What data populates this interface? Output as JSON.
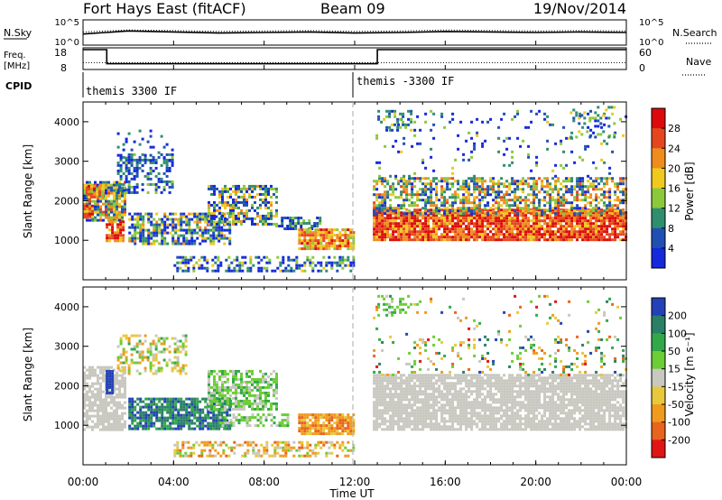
{
  "header": {
    "station": "Fort Hays East (fitACF)",
    "beam": "Beam 09",
    "date": "19/Nov/2014"
  },
  "labels": {
    "nsky": "N.Sky",
    "nsearch": "N.Search",
    "freq": "Freq.",
    "freq_unit": "[MHz]",
    "nave": "Nave",
    "cpid": "CPID",
    "xlabel": "Time UT"
  },
  "colors": {
    "power": [
      "#1428dc",
      "#2050b4",
      "#2f8e6e",
      "#8cc83c",
      "#f0c81e",
      "#f08c1e",
      "#e6461e",
      "#dc0a0a"
    ],
    "velocity": [
      "#2342b7",
      "#2a8066",
      "#32a848",
      "#6ccd36",
      "#c8c8c0",
      "#e8c83c",
      "#f09a1e",
      "#e8641e",
      "#e01414"
    ]
  },
  "chart_data": [
    {
      "type": "line",
      "title": "N.Sky / N.Search",
      "ylabel_left": "N.Sky",
      "ylabel_right": "N.Search",
      "yticks_left": [
        "10^5",
        "10^0"
      ],
      "yticks_right": [
        "10^5",
        "10^0"
      ],
      "xlim": [
        0,
        24
      ],
      "series": [
        {
          "name": "N.Sky",
          "x": [
            0,
            1,
            2,
            4,
            6,
            8,
            10,
            12,
            14,
            16,
            18,
            20,
            22,
            24
          ],
          "y": [
            2.2,
            2.5,
            2.8,
            2.6,
            2.4,
            2.5,
            2.6,
            2.4,
            2.5,
            2.7,
            2.6,
            2.5,
            2.6,
            2.5
          ]
        },
        {
          "name": "N.Search",
          "x": [
            0,
            2,
            4,
            6,
            8,
            10,
            12,
            14,
            16,
            18,
            20,
            22,
            24
          ],
          "y": [
            2.6,
            3.0,
            2.9,
            2.7,
            2.8,
            2.9,
            2.7,
            2.8,
            3.0,
            2.9,
            2.8,
            2.9,
            2.8
          ]
        }
      ]
    },
    {
      "type": "line",
      "ylabel_left": "Freq. [MHz]",
      "ylabel_right": "Nave",
      "yticks_left": [
        18,
        8
      ],
      "yticks_right": [
        60,
        0
      ],
      "xlim": [
        0,
        24
      ],
      "series": [
        {
          "name": "Freq.",
          "x": [
            0,
            1.05,
            1.05,
            13,
            13,
            24
          ],
          "y": [
            18,
            18,
            11.5,
            11.5,
            18,
            18
          ]
        },
        {
          "name": "Nave",
          "x": [
            0,
            24
          ],
          "y": [
            19,
            19
          ]
        }
      ]
    },
    {
      "type": "table",
      "title": "CPID",
      "entries": [
        {
          "start": 0,
          "label": "themis 3300 IF"
        },
        {
          "start": 12,
          "label": "themis -3300 IF"
        }
      ]
    },
    {
      "type": "heatmap",
      "ylabel": "Slant Range [km]",
      "xlabel": "Time UT",
      "xlim": [
        0,
        24
      ],
      "ylim": [
        0,
        4500
      ],
      "yticks": [
        1000,
        2000,
        3000,
        4000
      ],
      "xticks": [
        "00:00",
        "04:00",
        "08:00",
        "12:00",
        "16:00",
        "20:00",
        "00:00"
      ],
      "colorbar_label": "Power [dB]",
      "colorbar_ticks": [
        4,
        8,
        12,
        16,
        20,
        24,
        28
      ],
      "zlim": [
        0,
        32
      ],
      "blobs": [
        {
          "t0": 0.0,
          "t1": 1.8,
          "r0": 1500,
          "r1": 2500,
          "lv": 3,
          "spread": 3,
          "dens": 0.85
        },
        {
          "t0": 1.0,
          "t1": 1.8,
          "r0": 1000,
          "r1": 1500,
          "lv": 6,
          "spread": 2,
          "dens": 0.8
        },
        {
          "t0": 0.2,
          "t1": 0.8,
          "r0": 2100,
          "r1": 2400,
          "lv": 5,
          "spread": 2,
          "dens": 0.8
        },
        {
          "t0": 0.0,
          "t1": 0.4,
          "r0": 1600,
          "r1": 1900,
          "lv": 6,
          "spread": 2,
          "dens": 0.8
        },
        {
          "t0": 1.5,
          "t1": 4.0,
          "r0": 2200,
          "r1": 3200,
          "lv": 1,
          "spread": 2,
          "dens": 0.5
        },
        {
          "t0": 2.0,
          "t1": 6.5,
          "r0": 900,
          "r1": 1700,
          "lv": 2,
          "spread": 3,
          "dens": 0.7
        },
        {
          "t0": 5.5,
          "t1": 8.5,
          "r0": 1400,
          "r1": 2400,
          "lv": 2,
          "spread": 3,
          "dens": 0.6
        },
        {
          "t0": 8.5,
          "t1": 10.5,
          "r0": 1300,
          "r1": 1600,
          "lv": 1,
          "spread": 2,
          "dens": 0.5
        },
        {
          "t0": 9.5,
          "t1": 12.0,
          "r0": 800,
          "r1": 1300,
          "lv": 5,
          "spread": 2,
          "dens": 0.85
        },
        {
          "t0": 4.0,
          "t1": 12.0,
          "r0": 250,
          "r1": 600,
          "lv": 1,
          "spread": 3,
          "dens": 0.45
        },
        {
          "t0": 1.5,
          "t1": 4.0,
          "r0": 3000,
          "r1": 3800,
          "lv": 0,
          "spread": 2,
          "dens": 0.12
        },
        {
          "t0": 12.8,
          "t1": 24.0,
          "r0": 1000,
          "r1": 1800,
          "lv": 6,
          "spread": 2,
          "dens": 0.9
        },
        {
          "t0": 12.8,
          "t1": 24.0,
          "r0": 1700,
          "r1": 2600,
          "lv": 3,
          "spread": 3,
          "dens": 0.6
        },
        {
          "t0": 12.8,
          "t1": 24.0,
          "r0": 2600,
          "r1": 4300,
          "lv": 1,
          "spread": 3,
          "dens": 0.07
        },
        {
          "t0": 13.0,
          "t1": 14.5,
          "r0": 3800,
          "r1": 4300,
          "lv": 2,
          "spread": 2,
          "dens": 0.4
        },
        {
          "t0": 21.5,
          "t1": 23.5,
          "r0": 3600,
          "r1": 4400,
          "lv": 2,
          "spread": 2,
          "dens": 0.25
        }
      ]
    },
    {
      "type": "heatmap",
      "ylabel": "Slant Range [km]",
      "xlabel": "Time UT",
      "xlim": [
        0,
        24
      ],
      "ylim": [
        0,
        4500
      ],
      "yticks": [
        1000,
        2000,
        3000,
        4000
      ],
      "xticks": [
        "00:00",
        "04:00",
        "08:00",
        "12:00",
        "16:00",
        "20:00",
        "00:00"
      ],
      "colorbar_label": "Velocity [m s⁻¹]",
      "colorbar_ticks": [
        200,
        100,
        50,
        15,
        -15,
        -50,
        -100,
        -200
      ],
      "zlim": [
        -250,
        250
      ],
      "blobs": [
        {
          "t0": 0.0,
          "t1": 1.8,
          "r0": 900,
          "r1": 2500,
          "lv": 4,
          "spread": 0,
          "dens": 0.75
        },
        {
          "t0": 1.0,
          "t1": 1.3,
          "r0": 1800,
          "r1": 2400,
          "lv": 0,
          "spread": 0,
          "dens": 0.9
        },
        {
          "t0": 1.5,
          "t1": 4.5,
          "r0": 2300,
          "r1": 3300,
          "lv": 4,
          "spread": 2,
          "dens": 0.4
        },
        {
          "t0": 2.0,
          "t1": 6.5,
          "r0": 900,
          "r1": 1700,
          "lv": 1,
          "spread": 1,
          "dens": 0.8
        },
        {
          "t0": 5.5,
          "t1": 8.5,
          "r0": 1400,
          "r1": 2400,
          "lv": 3,
          "spread": 1,
          "dens": 0.7
        },
        {
          "t0": 6.0,
          "t1": 9.0,
          "r0": 1000,
          "r1": 1300,
          "lv": 3,
          "spread": 1,
          "dens": 0.5
        },
        {
          "t0": 9.5,
          "t1": 12.0,
          "r0": 800,
          "r1": 1300,
          "lv": 6,
          "spread": 1,
          "dens": 0.85
        },
        {
          "t0": 4.0,
          "t1": 12.0,
          "r0": 250,
          "r1": 600,
          "lv": 5,
          "spread": 2,
          "dens": 0.5
        },
        {
          "t0": 12.8,
          "t1": 24.0,
          "r0": 900,
          "r1": 2300,
          "lv": 4,
          "spread": 0,
          "dens": 0.85
        },
        {
          "t0": 12.8,
          "t1": 24.0,
          "r0": 2300,
          "r1": 3200,
          "lv": 4,
          "spread": 4,
          "dens": 0.15
        },
        {
          "t0": 12.8,
          "t1": 24.0,
          "r0": 3200,
          "r1": 4300,
          "lv": 4,
          "spread": 4,
          "dens": 0.05
        },
        {
          "t0": 13.0,
          "t1": 14.5,
          "r0": 3800,
          "r1": 4300,
          "lv": 3,
          "spread": 1,
          "dens": 0.4
        }
      ]
    }
  ]
}
